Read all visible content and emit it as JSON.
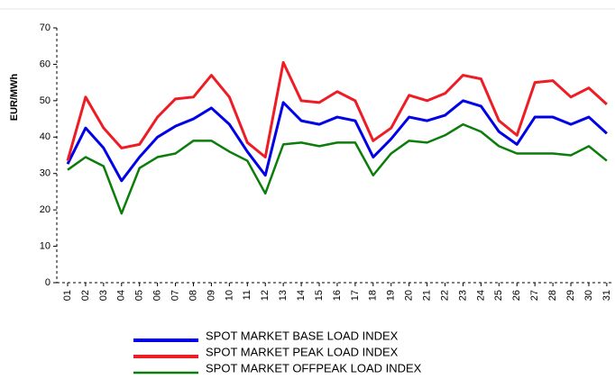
{
  "chart_data": {
    "type": "line",
    "y_label": "EUR/MWh",
    "categories": [
      "01",
      "02",
      "03",
      "04",
      "05",
      "06",
      "07",
      "08",
      "09",
      "10",
      "11",
      "12",
      "13",
      "14",
      "15",
      "16",
      "17",
      "18",
      "19",
      "20",
      "21",
      "22",
      "23",
      "24",
      "25",
      "26",
      "27",
      "28",
      "29",
      "30",
      "31"
    ],
    "series": [
      {
        "name": "SPOT MARKET BASE LOAD INDEX",
        "color": "#0000e6",
        "values": [
          32.6,
          42.5,
          37,
          28,
          34.5,
          40,
          43,
          45,
          48,
          43.5,
          36,
          29.5,
          49.5,
          44.5,
          43.5,
          45.5,
          44.5,
          34.5,
          39.5,
          45.5,
          44.5,
          46,
          50,
          48.5,
          41.5,
          38,
          45.5,
          45.5,
          43.5,
          45.5,
          41
        ]
      },
      {
        "name": "SPOT MARKET PEAK LOAD INDEX",
        "color": "#ee1c25",
        "values": [
          33.5,
          51,
          42.5,
          37,
          38,
          45.5,
          50.5,
          51,
          57,
          51,
          38.5,
          34.5,
          60.5,
          50,
          49.5,
          52.5,
          50,
          39,
          42.5,
          51.5,
          50,
          52,
          57,
          56,
          44.5,
          40.5,
          55,
          55.5,
          51,
          53.5,
          49
        ]
      },
      {
        "name": "SPOT MARKET OFFPEAK LOAD INDEX",
        "color": "#0a7d0a",
        "values": [
          31,
          34.5,
          32,
          19,
          31.5,
          34.5,
          35.5,
          39,
          39,
          36,
          33.5,
          24.5,
          38,
          38.5,
          37.5,
          38.5,
          38.5,
          29.5,
          35.5,
          39,
          38.5,
          40.5,
          43.5,
          41.5,
          37.5,
          35.5,
          35.5,
          35.5,
          35,
          37.5,
          33.5
        ]
      }
    ],
    "ylim": [
      0,
      70
    ],
    "yticks": [
      0,
      10,
      20,
      30,
      40,
      50,
      60,
      70
    ]
  }
}
